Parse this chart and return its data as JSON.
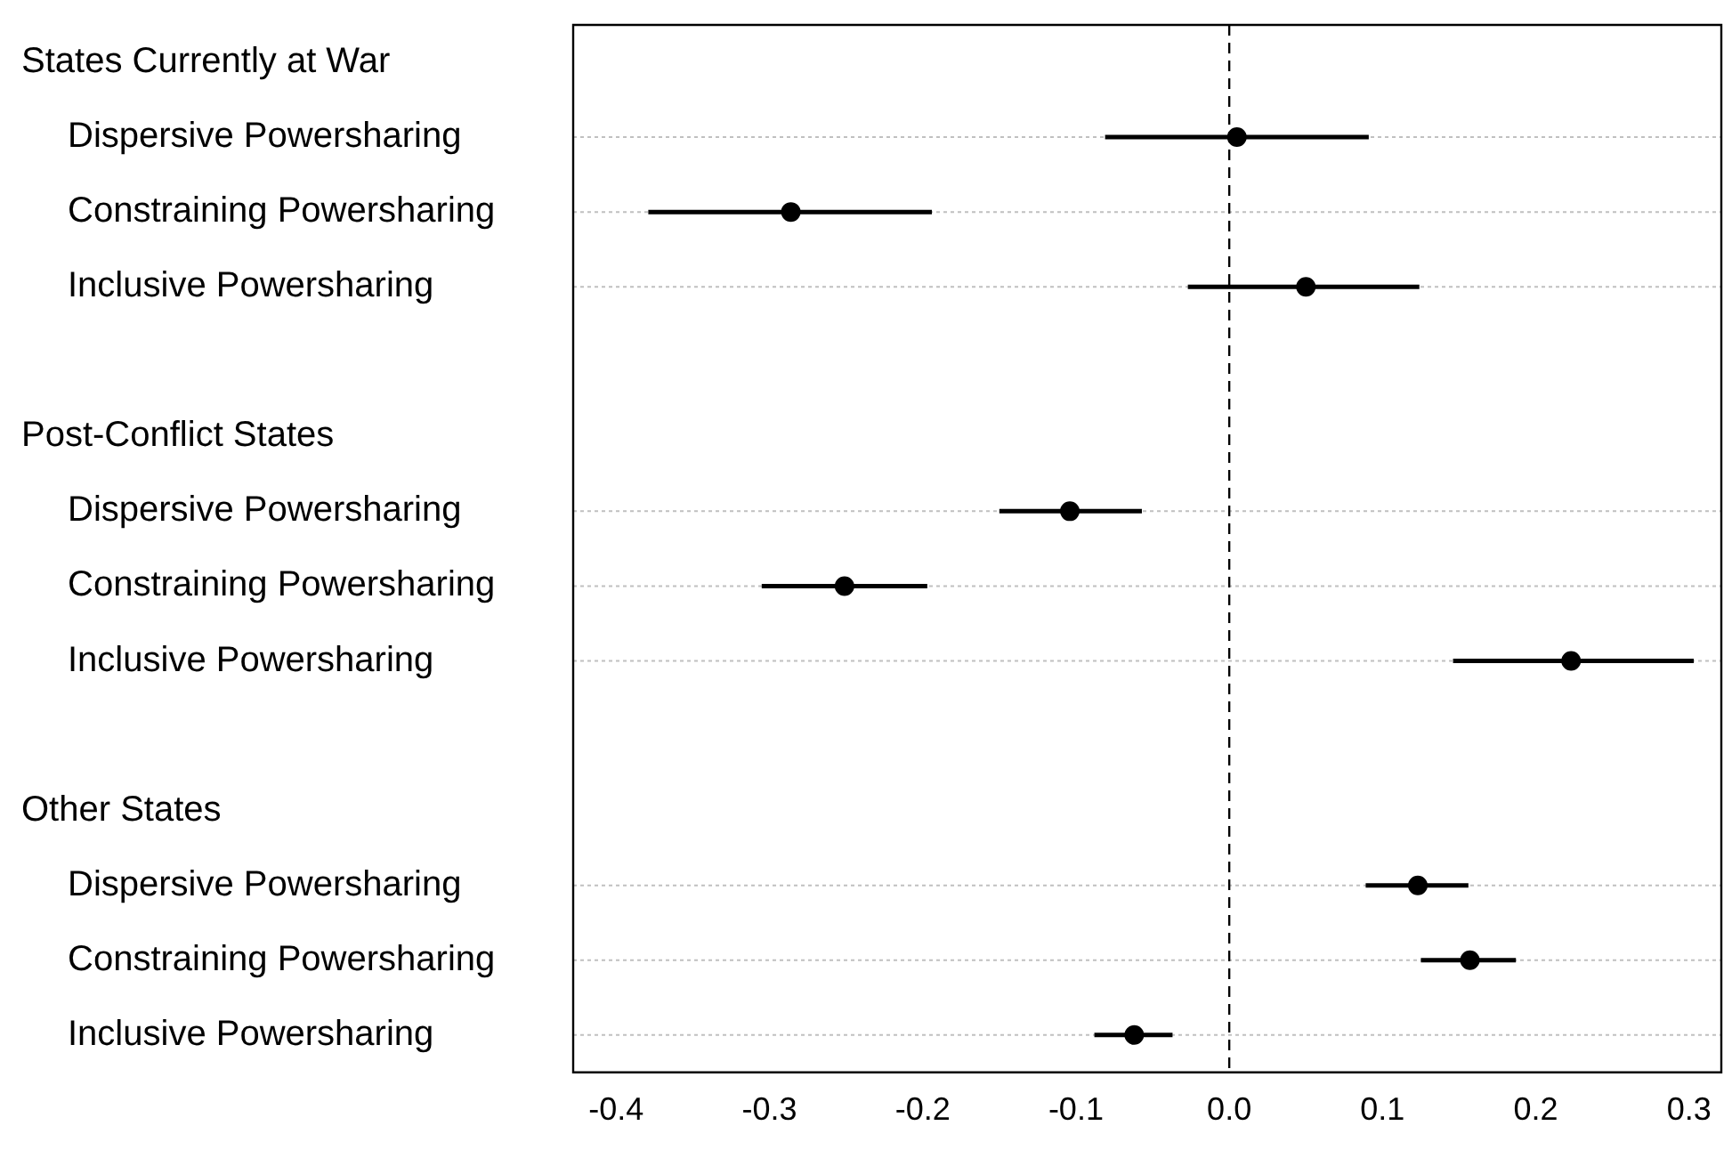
{
  "chart_data": {
    "type": "scatter",
    "orientation": "horizontal",
    "categories": [
      null,
      "Dispersive Powersharing",
      "Constraining Powersharing",
      "Inclusive Powersharing",
      null,
      null,
      "Dispersive Powersharing",
      "Constraining Powersharing",
      "Inclusive Powersharing",
      null,
      null,
      "Dispersive Powersharing",
      "Constraining Powersharing",
      "Inclusive Powersharing"
    ],
    "annotations": [
      "States Currently at War",
      "Post-Conflict States",
      "Other States"
    ],
    "series": [
      {
        "color": "#000000",
        "values": [
          null,
          0.005,
          -0.286,
          0.05,
          null,
          null,
          -0.104,
          -0.251,
          0.223,
          null,
          null,
          0.123,
          0.157,
          -0.062
        ],
        "errors": [
          null,
          [
            -0.081,
            0.091
          ],
          [
            -0.379,
            -0.194
          ],
          [
            -0.027,
            0.124
          ],
          null,
          null,
          [
            -0.15,
            -0.057
          ],
          [
            -0.305,
            -0.197
          ],
          [
            0.146,
            0.303
          ],
          null,
          null,
          [
            0.089,
            0.156
          ],
          [
            0.125,
            0.187
          ],
          [
            -0.088,
            -0.037
          ]
        ]
      }
    ],
    "xlim": [
      -0.428,
      0.321
    ],
    "xticks": [
      {
        "value": -0.4,
        "label": "-0.4"
      },
      {
        "value": -0.3,
        "label": "-0.3"
      },
      {
        "value": -0.2,
        "label": "-0.2"
      },
      {
        "value": -0.1,
        "label": "-0.1"
      },
      {
        "value": 0,
        "label": "0.0"
      },
      {
        "value": 0.1,
        "label": "0.1"
      },
      {
        "value": 0.2,
        "label": "0.2"
      },
      {
        "value": 0.3,
        "label": "0.3"
      }
    ],
    "ref_lines": [
      {
        "axis": "x",
        "value": 0,
        "color": "#000000",
        "line_style": "dashed"
      }
    ],
    "grid": "y",
    "marker": "circle",
    "legend": false
  }
}
